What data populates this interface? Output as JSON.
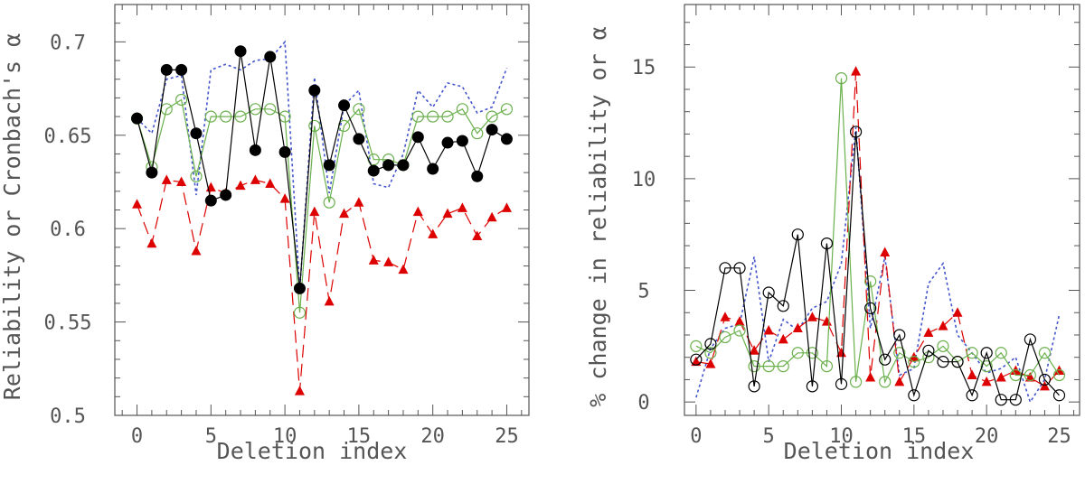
{
  "chart_data": [
    {
      "type": "line",
      "xlabel": "Deletion index",
      "ylabel": "Reliability or Cronbach's α",
      "xlim": [
        -1.5,
        26.5
      ],
      "ylim": [
        0.5,
        0.72
      ],
      "xticks": [
        0,
        5,
        10,
        15,
        20,
        25
      ],
      "xtick_labels": [
        "0",
        "5",
        "10",
        "15",
        "20",
        "25"
      ],
      "yticks": [
        0.5,
        0.55,
        0.6,
        0.65,
        0.7
      ],
      "ytick_labels": [
        "0.5",
        "0.55",
        "0.6",
        "0.65",
        "0.7"
      ],
      "x": [
        0,
        1,
        2,
        3,
        4,
        5,
        6,
        7,
        8,
        9,
        10,
        11,
        12,
        13,
        14,
        15,
        16,
        17,
        18,
        19,
        20,
        21,
        22,
        23,
        24,
        25
      ],
      "series": [
        {
          "marker": "filled-circle",
          "line": "solid",
          "color": "#000000",
          "values": [
            0.659,
            0.63,
            0.685,
            0.685,
            0.651,
            0.615,
            0.618,
            0.695,
            0.642,
            0.692,
            0.641,
            0.568,
            0.674,
            0.634,
            0.666,
            0.648,
            0.631,
            0.634,
            0.634,
            0.649,
            0.632,
            0.646,
            0.647,
            0.628,
            0.653,
            0.648
          ]
        },
        {
          "marker": "open-circle",
          "line": "solid",
          "color": "#6ab04c",
          "values": [
            0.659,
            0.633,
            0.664,
            0.669,
            0.628,
            0.66,
            0.66,
            0.66,
            0.664,
            0.664,
            0.66,
            0.555,
            0.655,
            0.614,
            0.655,
            0.664,
            0.637,
            0.637,
            0.634,
            0.66,
            0.66,
            0.66,
            0.664,
            0.651,
            0.66,
            0.664
          ]
        },
        {
          "marker": "none",
          "line": "dotted",
          "color": "#4455cc",
          "values": [
            0.659,
            0.651,
            0.68,
            0.682,
            0.618,
            0.685,
            0.688,
            0.685,
            0.69,
            0.691,
            0.7,
            0.567,
            0.681,
            0.619,
            0.666,
            0.674,
            0.624,
            0.622,
            0.64,
            0.674,
            0.665,
            0.678,
            0.676,
            0.662,
            0.665,
            0.686
          ]
        },
        {
          "marker": "filled-triangle",
          "line": "dashed",
          "color": "#dd0000",
          "values": [
            0.613,
            0.592,
            0.626,
            0.625,
            0.588,
            0.622,
            0.619,
            0.623,
            0.626,
            0.624,
            0.616,
            0.513,
            0.609,
            0.561,
            0.608,
            0.614,
            0.583,
            0.582,
            0.578,
            0.609,
            0.597,
            0.608,
            0.611,
            0.596,
            0.606,
            0.611
          ]
        }
      ]
    },
    {
      "type": "line",
      "xlabel": "Deletion index",
      "ylabel": "% change in reliability or α",
      "xlim": [
        -0.8,
        26.4
      ],
      "ylim": [
        -0.6,
        17.8
      ],
      "xticks": [
        0,
        5,
        10,
        15,
        20,
        25
      ],
      "xtick_labels": [
        "0",
        "5",
        "10",
        "15",
        "20",
        "25"
      ],
      "yticks": [
        0,
        5,
        10,
        15
      ],
      "ytick_labels": [
        "0",
        "5",
        "10",
        "15"
      ],
      "x": [
        0,
        1,
        2,
        3,
        4,
        5,
        6,
        7,
        8,
        9,
        10,
        11,
        12,
        13,
        14,
        15,
        16,
        17,
        18,
        19,
        20,
        21,
        22,
        23,
        24,
        25
      ],
      "series": [
        {
          "marker": "open-circle",
          "line": "solid",
          "color": "#000000",
          "values": [
            1.9,
            2.6,
            6.0,
            6.0,
            0.7,
            4.9,
            4.3,
            7.5,
            0.7,
            7.1,
            0.8,
            12.1,
            4.2,
            1.9,
            3.0,
            0.3,
            2.3,
            1.8,
            1.8,
            0.3,
            2.2,
            0.1,
            0.1,
            2.8,
            1.0,
            0.3
          ]
        },
        {
          "marker": "open-circle",
          "line": "solid",
          "color": "#6ab04c",
          "values": [
            2.5,
            2.2,
            2.9,
            3.2,
            1.6,
            1.6,
            1.6,
            2.2,
            2.2,
            1.6,
            14.5,
            0.9,
            5.4,
            0.9,
            2.2,
            1.8,
            2.0,
            2.5,
            1.8,
            2.2,
            1.6,
            2.2,
            1.2,
            1.2,
            2.2,
            1.2
          ]
        },
        {
          "marker": "none",
          "line": "dotted",
          "color": "#4455cc",
          "values": [
            0.2,
            2.4,
            3.3,
            3.5,
            6.5,
            1.8,
            3.7,
            3.2,
            4.2,
            4.5,
            6.2,
            12.3,
            3.3,
            6.5,
            1.2,
            1.5,
            5.3,
            6.2,
            3.0,
            2.2,
            1.3,
            1.5,
            2.0,
            0.0,
            1.0,
            3.9
          ]
        },
        {
          "marker": "filled-triangle",
          "line": "dashed",
          "color": "#dd0000",
          "values": [
            1.8,
            1.7,
            3.8,
            3.6,
            2.3,
            3.2,
            2.8,
            3.3,
            3.8,
            3.6,
            2.2,
            14.8,
            1.1,
            6.7,
            0.9,
            2.0,
            3.1,
            3.4,
            4.0,
            1.2,
            0.9,
            1.1,
            1.4,
            1.1,
            0.7,
            1.4
          ]
        }
      ]
    }
  ]
}
